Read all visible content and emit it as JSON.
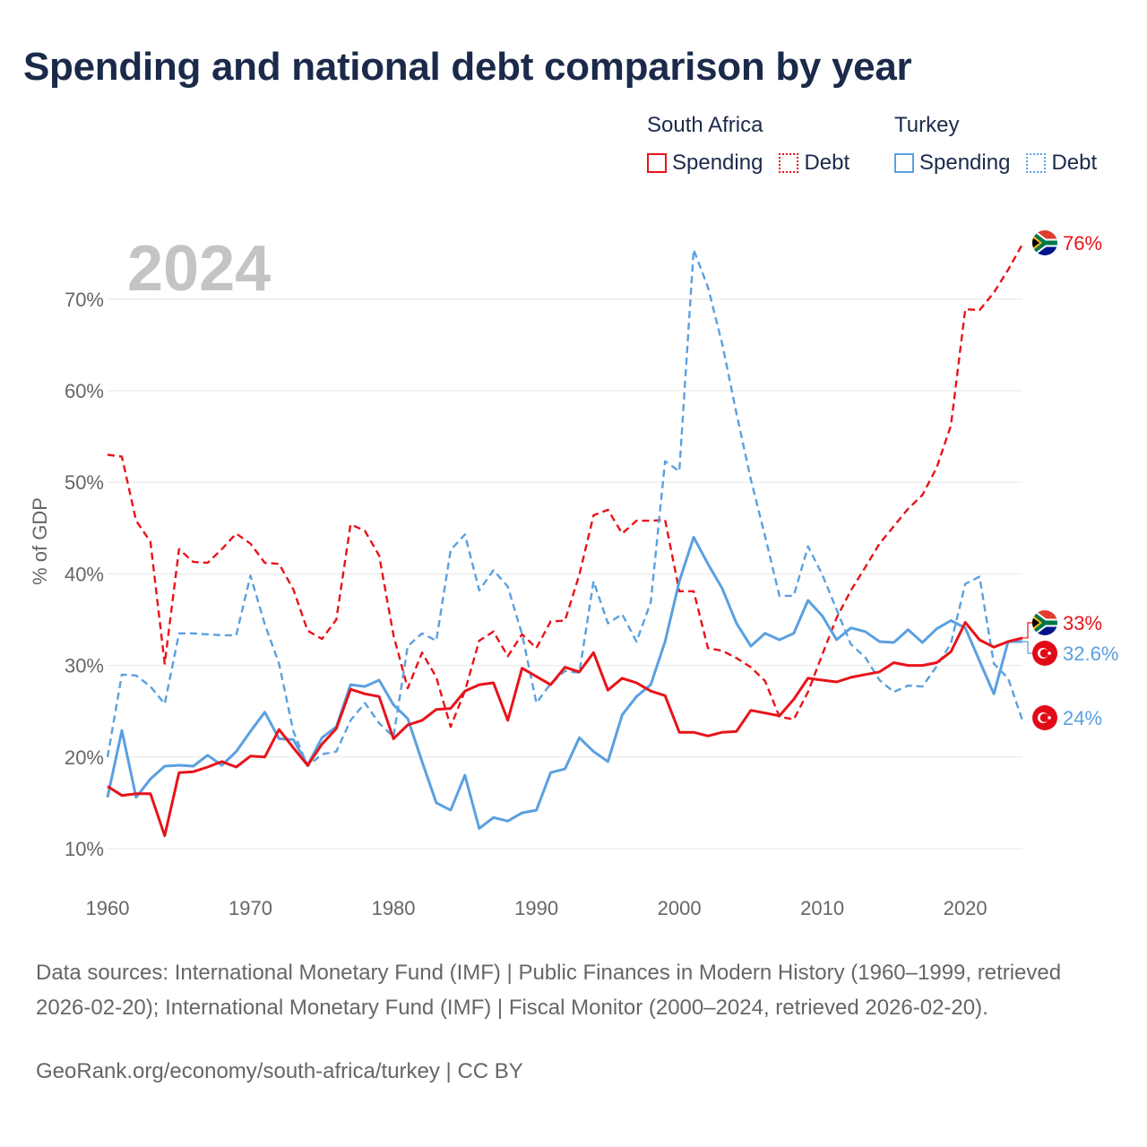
{
  "title": "Spending and national debt comparison by year",
  "legend": {
    "za_group": "South Africa",
    "tr_group": "Turkey",
    "spending": "Spending",
    "debt": "Debt"
  },
  "colors": {
    "south_africa": "#e8131a",
    "turkey": "#5aa0e0",
    "grid": "#e6e6e6",
    "axis_text": "#666666",
    "year_label": "#c4c4c4"
  },
  "chart_data": {
    "type": "line",
    "year_label": "2024",
    "ylabel": "% of GDP",
    "xlim": [
      1960,
      2024
    ],
    "ylim": [
      10,
      76
    ],
    "x_ticks": [
      "1960",
      "1970",
      "1980",
      "1990",
      "2000",
      "2010",
      "2020"
    ],
    "y_ticks": [
      "10%",
      "20%",
      "30%",
      "40%",
      "50%",
      "60%",
      "70%"
    ],
    "x": [
      1960,
      1961,
      1962,
      1963,
      1964,
      1965,
      1966,
      1967,
      1968,
      1969,
      1970,
      1971,
      1972,
      1973,
      1974,
      1975,
      1976,
      1977,
      1978,
      1979,
      1980,
      1981,
      1982,
      1983,
      1984,
      1985,
      1986,
      1987,
      1988,
      1989,
      1990,
      1991,
      1992,
      1993,
      1994,
      1995,
      1996,
      1997,
      1998,
      1999,
      2000,
      2001,
      2002,
      2003,
      2004,
      2005,
      2006,
      2007,
      2008,
      2009,
      2010,
      2011,
      2012,
      2013,
      2014,
      2015,
      2016,
      2017,
      2018,
      2019,
      2020,
      2021,
      2022,
      2023,
      2024
    ],
    "series": [
      {
        "name": "South Africa Spending",
        "country": "South Africa",
        "measure": "Spending",
        "style": "solid",
        "color": "#e8131a",
        "values": [
          16.8,
          15.8,
          16.0,
          16.0,
          11.4,
          18.3,
          18.4,
          18.9,
          19.5,
          18.9,
          20.1,
          20.0,
          23.0,
          21.0,
          19.1,
          21.4,
          23.1,
          27.4,
          26.9,
          26.6,
          22.0,
          23.5,
          24.0,
          25.2,
          25.3,
          27.2,
          27.9,
          28.1,
          24.0,
          29.7,
          28.8,
          27.9,
          29.8,
          29.3,
          31.4,
          27.3,
          28.6,
          28.1,
          27.2,
          26.7,
          22.7,
          22.7,
          22.3,
          22.7,
          22.8,
          25.1,
          24.8,
          24.5,
          26.3,
          28.6,
          28.4,
          28.2,
          28.7,
          29.0,
          29.3,
          30.3,
          30.0,
          30.0,
          30.3,
          31.5,
          34.7,
          32.8,
          32.0,
          32.6,
          33.0
        ],
        "end_label": "33%"
      },
      {
        "name": "South Africa Debt",
        "country": "South Africa",
        "measure": "Debt",
        "style": "dashed",
        "color": "#e8131a",
        "values": [
          53.0,
          52.8,
          45.8,
          43.5,
          30.2,
          42.7,
          41.3,
          41.2,
          42.7,
          44.4,
          43.3,
          41.2,
          41.1,
          38.3,
          33.8,
          32.9,
          35.0,
          45.4,
          44.7,
          42.0,
          33.3,
          27.5,
          31.4,
          28.7,
          23.3,
          27.2,
          32.7,
          33.7,
          31.0,
          33.4,
          31.9,
          34.8,
          34.9,
          39.9,
          46.4,
          47.0,
          44.4,
          45.8,
          45.8,
          45.9,
          38.1,
          38.1,
          31.9,
          31.6,
          30.8,
          29.8,
          28.3,
          24.4,
          24.1,
          27.1,
          31.2,
          35.2,
          38.2,
          40.7,
          43.3,
          45.2,
          47.1,
          48.6,
          51.6,
          56.2,
          68.9,
          68.8,
          70.7,
          73.2,
          76.0
        ],
        "end_label": "76%"
      },
      {
        "name": "Turkey Spending",
        "country": "Turkey",
        "measure": "Spending",
        "style": "solid",
        "color": "#5aa0e0",
        "values": [
          15.6,
          22.9,
          15.6,
          17.6,
          19.0,
          19.1,
          19.0,
          20.2,
          19.1,
          20.6,
          22.8,
          24.9,
          22.0,
          21.9,
          19.1,
          22.1,
          23.3,
          27.9,
          27.7,
          28.4,
          25.7,
          24.2,
          19.5,
          15.0,
          14.2,
          18.0,
          12.2,
          13.4,
          13.0,
          13.9,
          14.2,
          18.3,
          18.7,
          22.1,
          20.6,
          19.5,
          24.6,
          26.6,
          27.9,
          32.6,
          39.2,
          44.0,
          41.1,
          38.4,
          34.6,
          32.1,
          33.5,
          32.8,
          33.5,
          37.1,
          35.4,
          32.8,
          34.1,
          33.7,
          32.6,
          32.5,
          33.9,
          32.5,
          34.0,
          34.9,
          34.1,
          30.5,
          26.9,
          32.6,
          32.6
        ],
        "end_label": "32.6%"
      },
      {
        "name": "Turkey Debt",
        "country": "Turkey",
        "measure": "Debt",
        "style": "dashed",
        "color": "#5aa0e0",
        "values": [
          20.0,
          29.0,
          28.9,
          27.7,
          25.8,
          33.5,
          33.5,
          33.4,
          33.3,
          33.3,
          39.8,
          34.5,
          30.2,
          22.8,
          19.0,
          20.3,
          20.6,
          24.0,
          25.9,
          23.7,
          22.2,
          32.1,
          33.5,
          32.7,
          42.6,
          44.3,
          38.2,
          40.4,
          38.6,
          33.4,
          25.9,
          28.0,
          29.4,
          29.2,
          39.2,
          34.6,
          35.6,
          32.6,
          36.9,
          52.3,
          51.2,
          75.4,
          71.3,
          65.1,
          57.5,
          50.3,
          44.1,
          37.6,
          37.6,
          43.0,
          39.9,
          36.1,
          32.3,
          30.9,
          28.4,
          27.1,
          27.8,
          27.7,
          29.9,
          32.4,
          38.9,
          39.7,
          30.2,
          28.6,
          24.0
        ],
        "end_label": "24%"
      }
    ]
  },
  "footer": {
    "sources": "Data sources: International Monetary Fund (IMF) | Public Finances in Modern History (1960–1999, retrieved 2026-02-20); International Monetary Fund (IMF) | Fiscal Monitor (2000–2024, retrieved 2026-02-20).",
    "credit": "GeoRank.org/economy/south-africa/turkey | CC BY"
  }
}
